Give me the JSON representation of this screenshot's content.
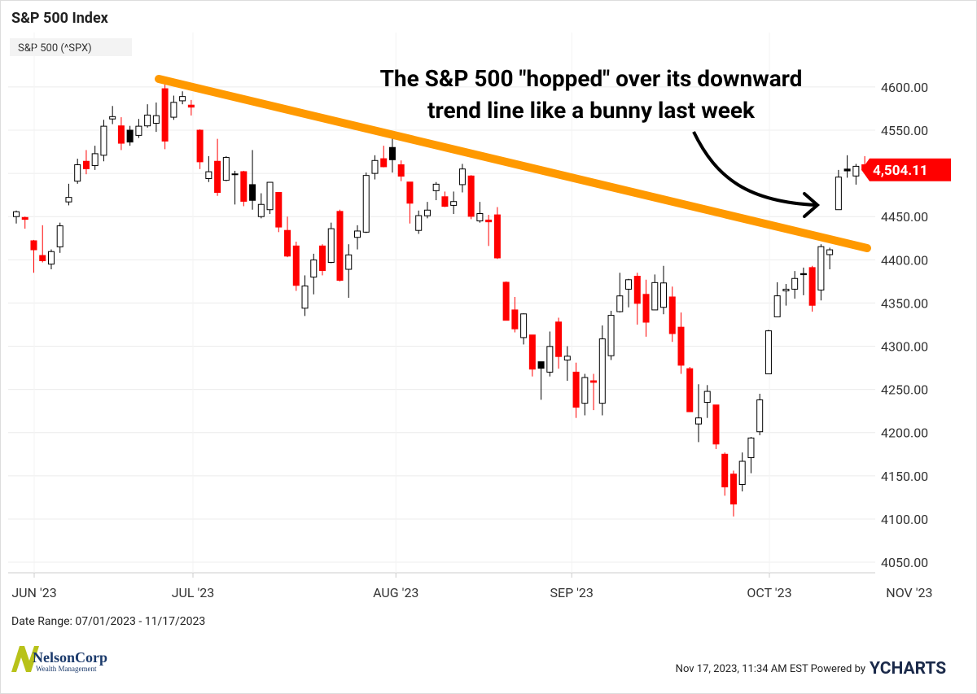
{
  "chart_data": {
    "type": "candlestick",
    "title": "S&P 500 Index",
    "series": [
      {
        "name": "S&P 500 (^SPX)",
        "open": [
          4450,
          4449,
          4422,
          4405,
          4395,
          4415,
          4467,
          4491,
          4514,
          4509,
          4521,
          4563,
          4555,
          4550,
          4544,
          4555,
          4558,
          4598,
          4565,
          4584,
          4579,
          4550,
          4494,
          4514,
          4492,
          4499,
          4502,
          4487,
          4450,
          4458,
          4478,
          4434,
          4416,
          4344,
          4380,
          4416,
          4397,
          4456,
          4389,
          4426,
          4432,
          4500,
          4517,
          4530,
          4510,
          4490,
          4434,
          4451,
          4480,
          4473,
          4463,
          4487,
          4497,
          4445,
          4446,
          4452,
          4374,
          4342,
          4310,
          4313,
          4282,
          4270,
          4328,
          4284,
          4270,
          4234,
          4260,
          4234,
          4289,
          4340,
          4366,
          4381,
          4360,
          4342,
          4345,
          4357,
          4322,
          4274,
          4210,
          4235,
          4232,
          4175,
          4152,
          4140,
          4171,
          4201,
          4268,
          4334,
          4364,
          4366,
          4384,
          4391,
          4365,
          4406,
          4458,
          4505,
          4497,
          4510
        ],
        "high": [
          4457,
          4450,
          4423,
          4440,
          4412,
          4443,
          4488,
          4517,
          4527,
          4532,
          4562,
          4578,
          4565,
          4555,
          4563,
          4580,
          4582,
          4607,
          4590,
          4595,
          4585,
          4551,
          4520,
          4540,
          4520,
          4503,
          4503,
          4527,
          4477,
          4490,
          4478,
          4450,
          4421,
          4382,
          4407,
          4418,
          4443,
          4458,
          4418,
          4440,
          4501,
          4521,
          4532,
          4541,
          4515,
          4490,
          4457,
          4467,
          4490,
          4479,
          4479,
          4511,
          4498,
          4467,
          4452,
          4461,
          4375,
          4357,
          4338,
          4313,
          4282,
          4317,
          4333,
          4300,
          4281,
          4268,
          4268,
          4324,
          4341,
          4385,
          4378,
          4385,
          4377,
          4383,
          4393,
          4369,
          4339,
          4276,
          4256,
          4255,
          4232,
          4177,
          4156,
          4177,
          4195,
          4245,
          4319,
          4374,
          4372,
          4387,
          4391,
          4393,
          4418,
          4414,
          4504,
          4521,
          4511,
          4520
        ],
        "low": [
          4442,
          4436,
          4385,
          4397,
          4389,
          4408,
          4463,
          4488,
          4499,
          4504,
          4514,
          4557,
          4527,
          4532,
          4541,
          4553,
          4548,
          4528,
          4562,
          4580,
          4567,
          4505,
          4490,
          4474,
          4491,
          4464,
          4462,
          4458,
          4448,
          4453,
          4432,
          4403,
          4364,
          4335,
          4360,
          4382,
          4396,
          4375,
          4356,
          4412,
          4431,
          4493,
          4507,
          4501,
          4491,
          4442,
          4430,
          4448,
          4469,
          4461,
          4453,
          4478,
          4447,
          4443,
          4416,
          4401,
          4330,
          4316,
          4302,
          4265,
          4238,
          4265,
          4274,
          4260,
          4217,
          4220,
          4226,
          4220,
          4284,
          4339,
          4345,
          4325,
          4311,
          4342,
          4337,
          4305,
          4268,
          4224,
          4189,
          4217,
          4181,
          4127,
          4103,
          4132,
          4153,
          4197,
          4268,
          4334,
          4347,
          4355,
          4359,
          4340,
          4353,
          4389,
          4458,
          4495,
          4487,
          4500
        ],
        "close": [
          4455.6,
          4446.8,
          4411.6,
          4398.9,
          4409.5,
          4439.3,
          4472.2,
          4510.0,
          4505.4,
          4522.8,
          4554.6,
          4565.7,
          4534.9,
          4536.3,
          4554.6,
          4567.5,
          4566.8,
          4537.4,
          4582.2,
          4588.96,
          4576.7,
          4513.4,
          4501.9,
          4478.0,
          4518.4,
          4499.4,
          4467.7,
          4468.8,
          4464.1,
          4489.7,
          4437.9,
          4404.3,
          4370.4,
          4369.7,
          4399.8,
          4387.6,
          4436.0,
          4376.3,
          4405.7,
          4433.3,
          4497.6,
          4514.9,
          4507.7,
          4515.8,
          4496.8,
          4465.5,
          4451.1,
          4457.5,
          4487.5,
          4461.9,
          4467.4,
          4505.1,
          4450.3,
          4453.5,
          4443.95,
          4402.2,
          4330.0,
          4320.1,
          4337.4,
          4273.5,
          4274.5,
          4299.7,
          4288.05,
          4288.4,
          4229.45,
          4263.75,
          4258.2,
          4308.5,
          4335.7,
          4358.2,
          4376.95,
          4349.6,
          4327.8,
          4373.6,
          4373.2,
          4314.6,
          4278.0,
          4224.2,
          4217.0,
          4247.7,
          4186.8,
          4137.2,
          4117.4,
          4166.8,
          4193.8,
          4237.9,
          4317.8,
          4358.3,
          4365.98,
          4378.4,
          4382.8,
          4347.35,
          4415.2,
          4411.55,
          4495.7,
          4502.9,
          4508.2,
          4504.11
        ]
      }
    ],
    "up_color": "#ffffff",
    "down_color": "#ff0000",
    "down_up_color": "#000000",
    "last_price": {
      "value": 4504.11,
      "label": "4,504.11"
    },
    "xlim": [
      -0.93,
      98.2
    ],
    "xticks": [
      {
        "value": 2.05,
        "label": "JUN '23"
      },
      {
        "value": 20.2,
        "label": "JUL '23"
      },
      {
        "value": 43.4,
        "label": "AUG '23"
      },
      {
        "value": 63.5,
        "label": "SEP '23"
      },
      {
        "value": 86.1,
        "label": "OCT '23"
      },
      {
        "value": 102.1,
        "label": "NOV '23"
      }
    ],
    "ylim": [
      4037.8,
      4663
    ],
    "yticks": [
      {
        "value": 4050,
        "label": "4050.00"
      },
      {
        "value": 4100,
        "label": "4100.00"
      },
      {
        "value": 4150,
        "label": "4150.00"
      },
      {
        "value": 4200,
        "label": "4200.00"
      },
      {
        "value": 4250,
        "label": "4250.00"
      },
      {
        "value": 4300,
        "label": "4300.00"
      },
      {
        "value": 4350,
        "label": "4350.00"
      },
      {
        "value": 4400,
        "label": "4400.00"
      },
      {
        "value": 4450,
        "label": "4450.00"
      },
      {
        "value": 4500,
        "label": "4500.00"
      },
      {
        "value": 4550,
        "label": "4550.00"
      },
      {
        "value": 4600,
        "label": "4600.00"
      }
    ],
    "grid": true,
    "annotation": [
      "The S&P 500 \"hopped\" over its downward",
      "trend line like a bunny last week"
    ],
    "date_range": "Date Range: 07/01/2023 - 11/17/2023",
    "logo": {
      "name": "NelsonCorp",
      "tagline": "Wealth Management"
    },
    "footer": {
      "timestamp": "Nov 17, 2023, 11:34 AM EST Powered by",
      "brand": "YCHARTS"
    }
  }
}
